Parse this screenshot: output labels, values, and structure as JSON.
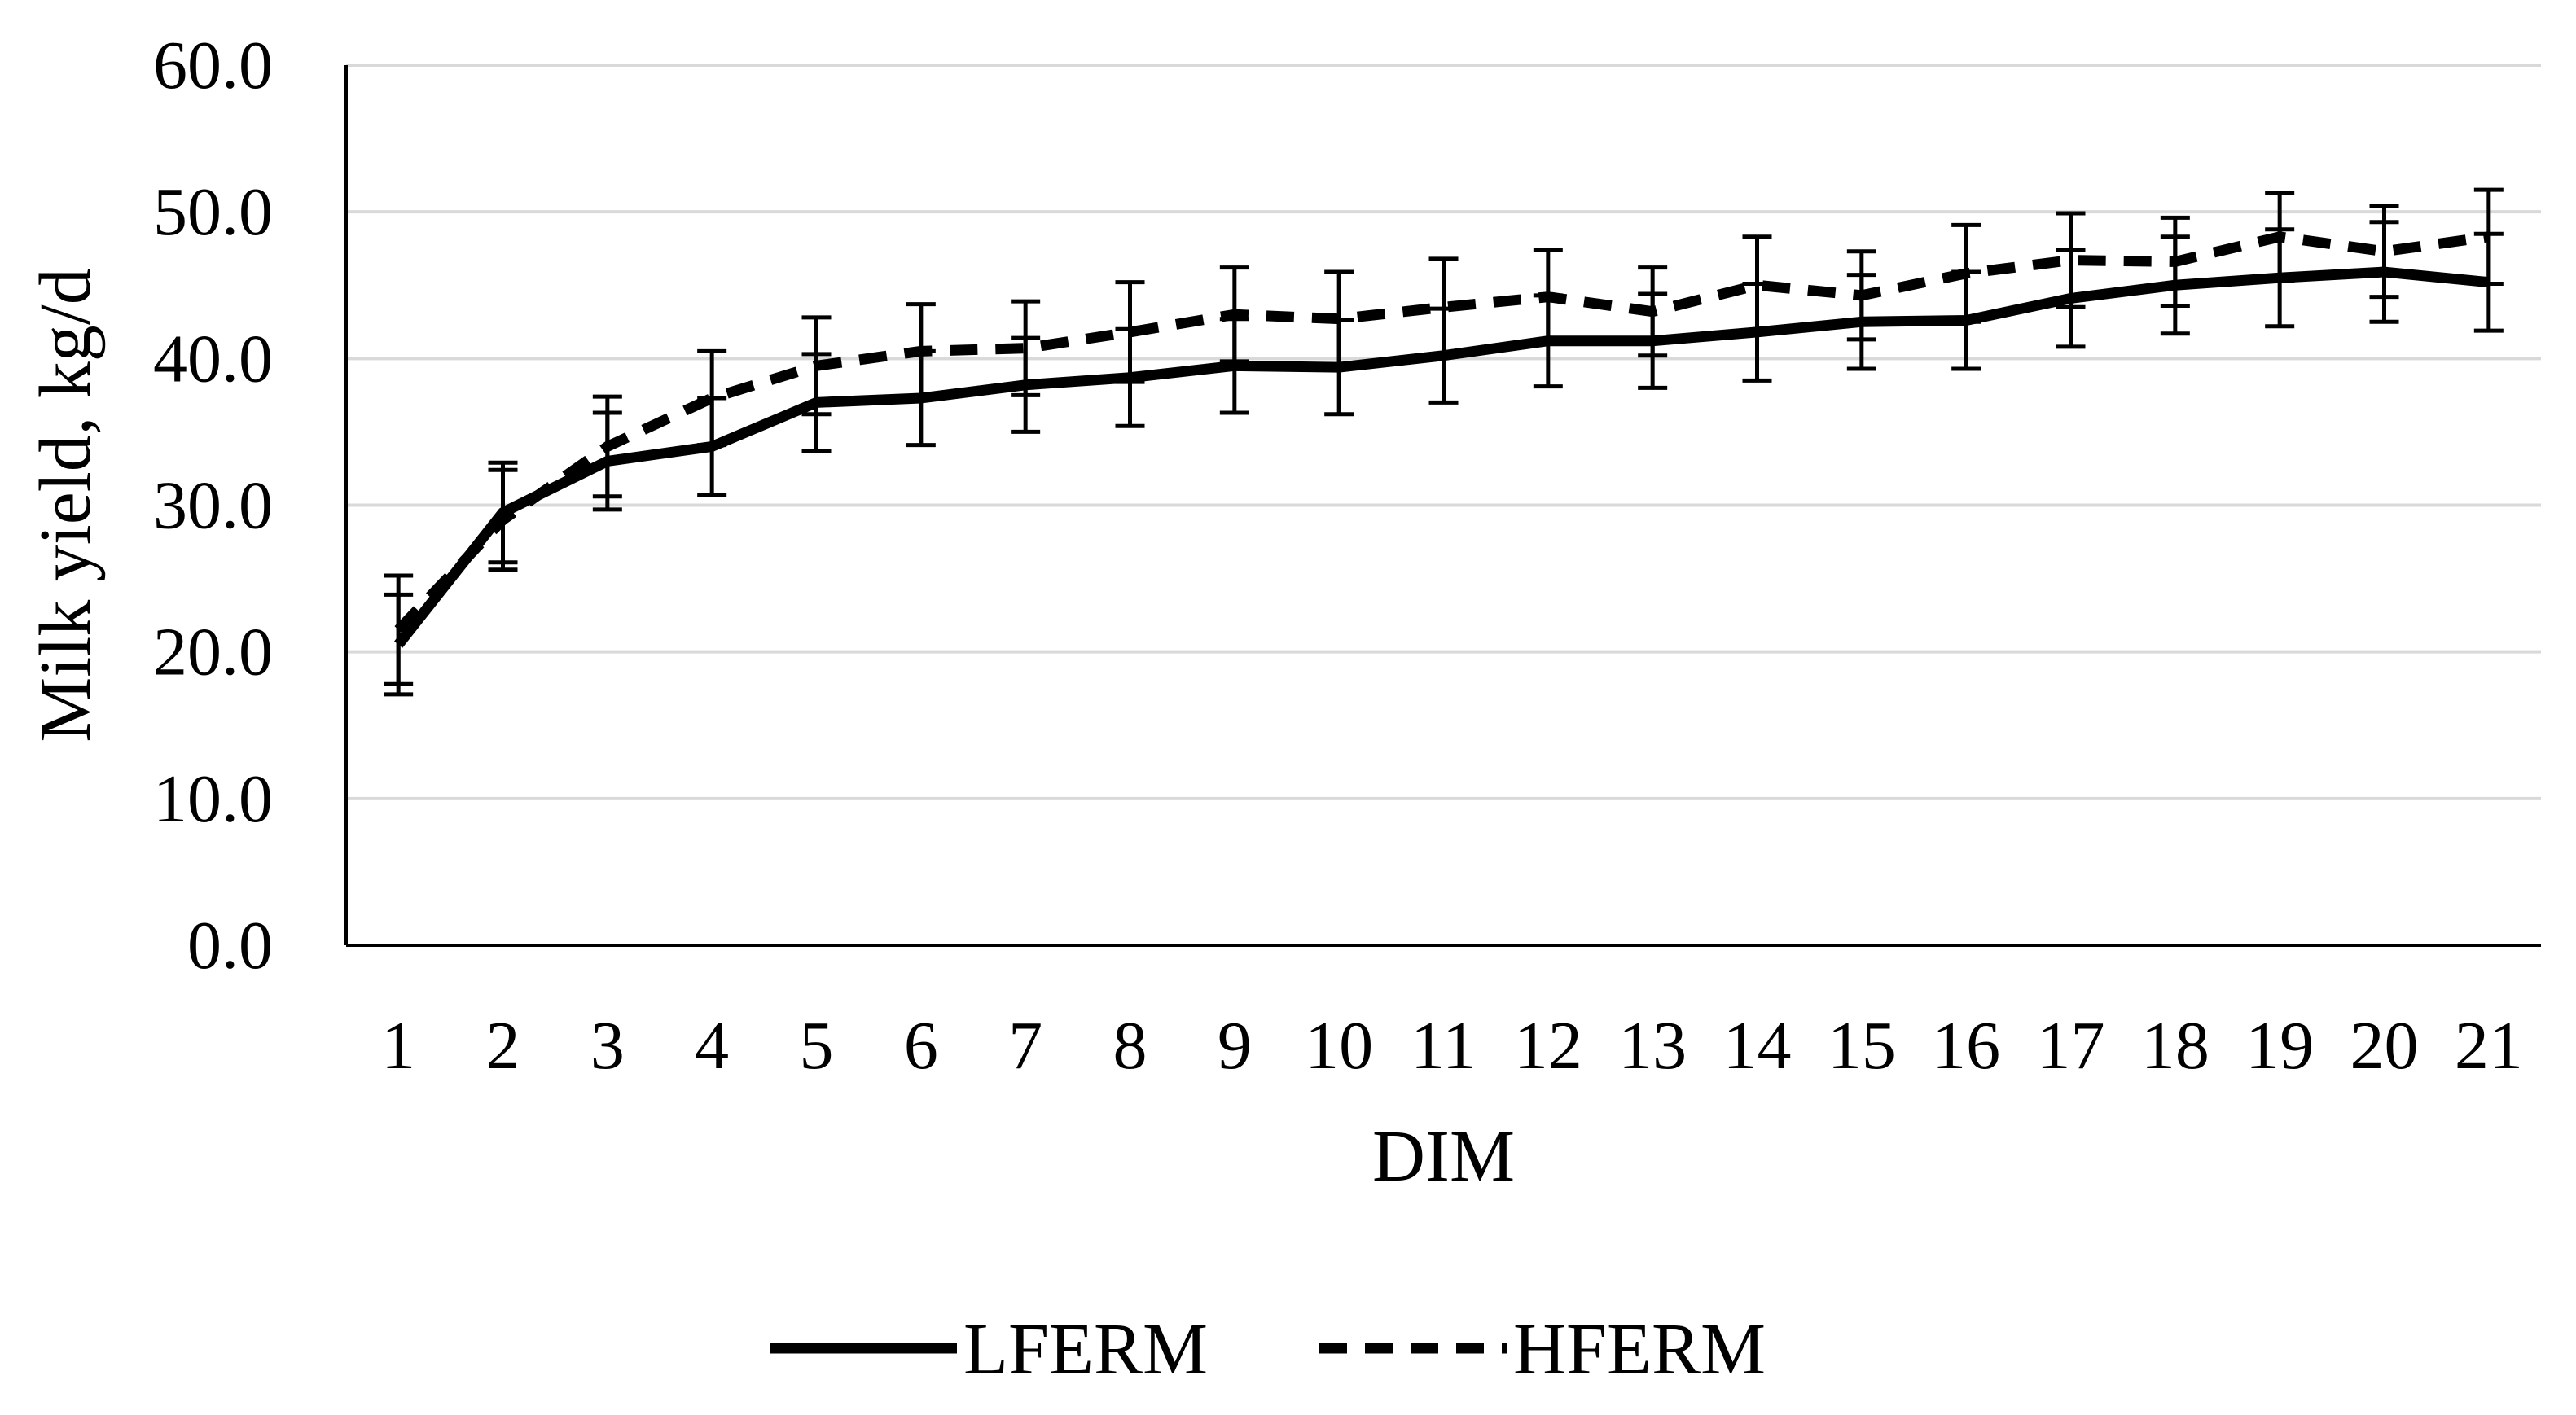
{
  "chart_data": {
    "type": "line",
    "x": [
      1,
      2,
      3,
      4,
      5,
      6,
      7,
      8,
      9,
      10,
      11,
      12,
      13,
      14,
      15,
      16,
      17,
      18,
      19,
      20,
      21
    ],
    "xlabel": "DIM",
    "ylabel": "Milk yield, kg/d",
    "ylim": [
      0,
      60
    ],
    "yticks": [
      "0.0",
      "10.0",
      "20.0",
      "30.0",
      "40.0",
      "50.0",
      "60.0"
    ],
    "grid": true,
    "legend_position": "bottom",
    "series": [
      {
        "name": "LFERM",
        "style": "solid",
        "color": "#000000",
        "values": [
          20.5,
          29.5,
          33.0,
          34.0,
          37.0,
          37.3,
          38.2,
          38.7,
          39.5,
          39.4,
          40.2,
          41.2,
          41.2,
          41.8,
          42.5,
          42.6,
          44.1,
          45.0,
          45.5,
          45.9,
          45.2
        ],
        "error": [
          3.4,
          3.4,
          3.3,
          3.3,
          3.3,
          3.2,
          3.2,
          3.3,
          3.2,
          3.2,
          3.2,
          3.1,
          3.2,
          3.3,
          3.2,
          3.3,
          3.3,
          3.3,
          3.3,
          3.4,
          3.3
        ]
      },
      {
        "name": "HFERM",
        "style": "dashed",
        "color": "#000000",
        "values": [
          21.5,
          29.0,
          34.0,
          37.3,
          39.5,
          40.5,
          40.7,
          41.8,
          43.0,
          42.7,
          43.5,
          44.2,
          43.2,
          45.0,
          44.3,
          45.8,
          46.7,
          46.6,
          48.3,
          47.3,
          48.3
        ],
        "error": [
          3.7,
          3.4,
          3.4,
          3.2,
          3.3,
          3.2,
          3.2,
          3.4,
          3.2,
          3.2,
          3.3,
          3.2,
          3.0,
          3.3,
          3.0,
          3.3,
          3.2,
          3.0,
          3.0,
          3.1,
          3.2
        ]
      }
    ]
  }
}
